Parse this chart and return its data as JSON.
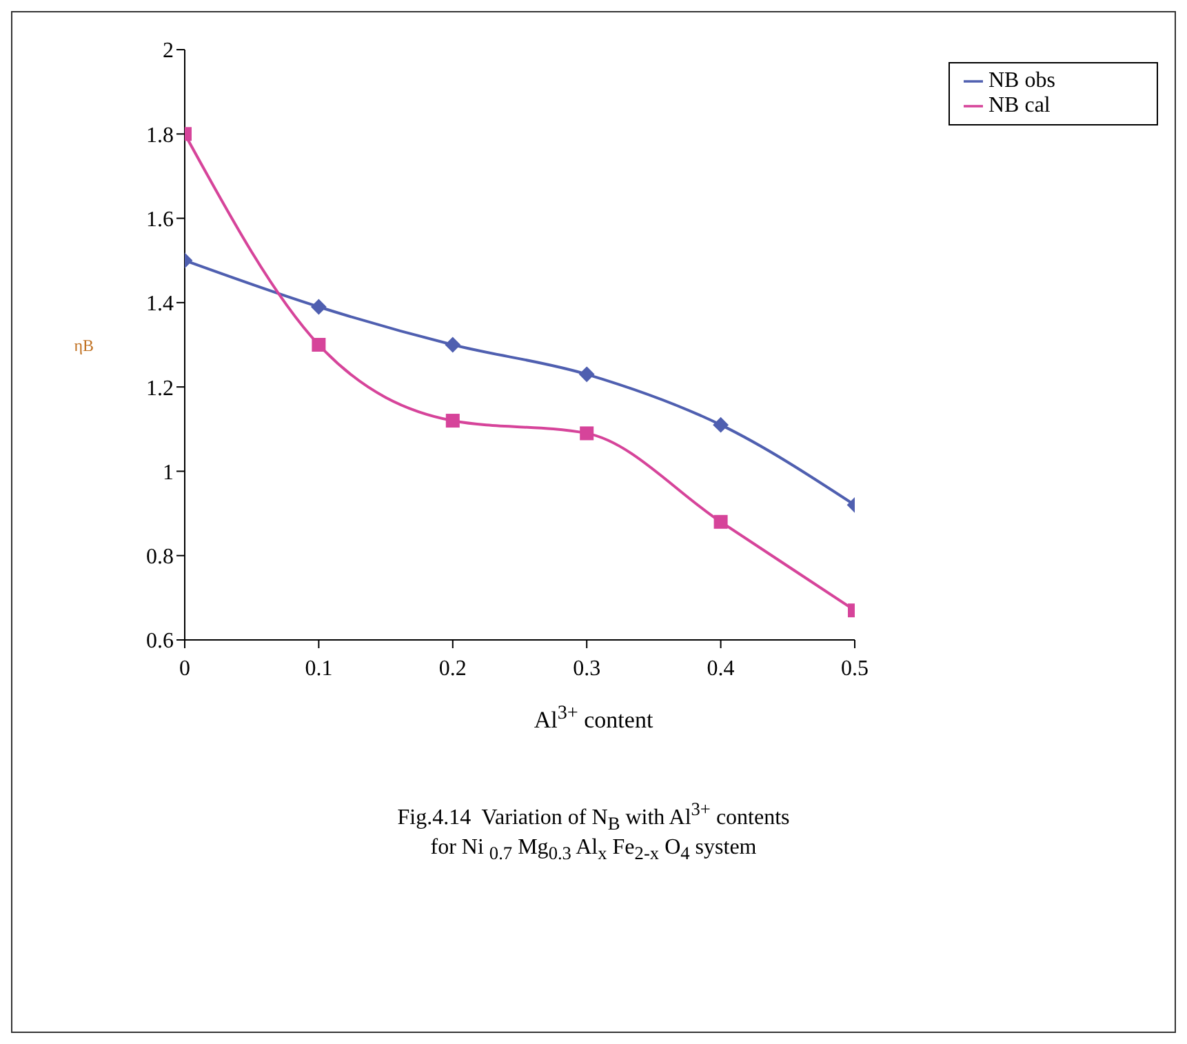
{
  "chart_data": {
    "type": "line",
    "xlabel": "Al$^{3+}$ content",
    "ylabel": "ηB",
    "x": [
      0,
      0.1,
      0.2,
      0.3,
      0.4,
      0.5
    ],
    "series": [
      {
        "name": "NB obs",
        "color": "#4f5fb0",
        "marker": "diamond",
        "values": [
          1.5,
          1.39,
          1.3,
          1.23,
          1.11,
          0.92
        ]
      },
      {
        "name": "NB cal",
        "color": "#d6449a",
        "marker": "square",
        "values": [
          1.8,
          1.3,
          1.12,
          1.09,
          0.88,
          0.67
        ]
      }
    ],
    "xlim": [
      0,
      0.5
    ],
    "xticks": [
      0,
      0.1,
      0.2,
      0.3,
      0.4,
      0.5
    ],
    "ylim": [
      0.6,
      2
    ],
    "yticks": [
      0.6,
      0.8,
      1,
      1.2,
      1.4,
      1.6,
      1.8,
      2
    ],
    "grid": false,
    "legend": "top right",
    "line_style": "solid",
    "annotations": [
      "Fig.4.14  Variation of N$_{B}$ with Al$^{3+}$ contents",
      "for Ni $_{0.7}$ Mg$_{0.3}$ Al$_{x}$ Fe$_{2-x}$ O$_{4}$ system"
    ]
  }
}
